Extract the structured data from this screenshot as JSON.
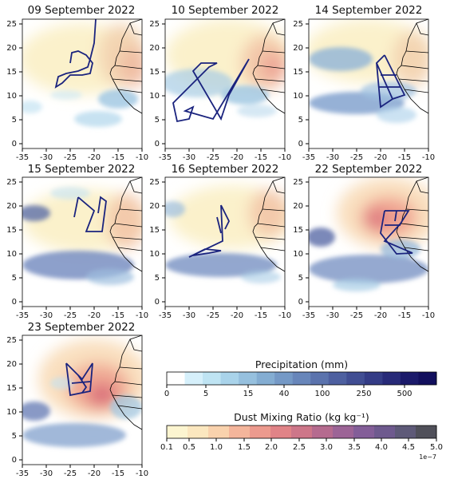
{
  "panels": [
    {
      "title": "09 September 2022"
    },
    {
      "title": "10 September 2022"
    },
    {
      "title": "14 September 2022"
    },
    {
      "title": "15 September 2022"
    },
    {
      "title": "16 September 2022"
    },
    {
      "title": "22 September 2022"
    },
    {
      "title": "23 September 2022"
    }
  ],
  "axes": {
    "x_ticks": [
      "-35",
      "-30",
      "-25",
      "-20",
      "-15",
      "-10"
    ],
    "y_ticks": [
      "0",
      "5",
      "10",
      "15",
      "20",
      "25"
    ],
    "lon_range": [
      -35,
      -10
    ],
    "lat_range": [
      -1,
      26
    ]
  },
  "colorbars": {
    "precipitation": {
      "title": "Precipitation (mm)",
      "tick_labels": [
        "0",
        "5",
        "15",
        "40",
        "100",
        "250",
        "500"
      ],
      "colors": [
        "#ffffff",
        "#d6f0fb",
        "#bfe4f3",
        "#a9d3ea",
        "#96c0de",
        "#84add2",
        "#7599c6",
        "#6886ba",
        "#5b73ad",
        "#4e60a0",
        "#414e93",
        "#343c86",
        "#272a78",
        "#1b1a6a",
        "#120f5d"
      ]
    },
    "dust": {
      "title": "Dust Mixing Ratio (kg kg⁻¹)",
      "tick_labels": [
        "0.1",
        "0.5",
        "1.0",
        "1.5",
        "2.0",
        "2.5",
        "3.0",
        "3.5",
        "4.0",
        "4.5",
        "5.0"
      ],
      "exponent": "1e−7",
      "colors": [
        "#fcf5d0",
        "#fbe7bf",
        "#f9d2ad",
        "#f4b59b",
        "#ec9a8e",
        "#e08387",
        "#cd7689",
        "#b56b8f",
        "#9c6496",
        "#835e98",
        "#6e5a8e",
        "#5e5a78",
        "#50505a"
      ]
    }
  },
  "colors": {
    "flight_track": "#1a237e",
    "coastline": "#000000"
  }
}
